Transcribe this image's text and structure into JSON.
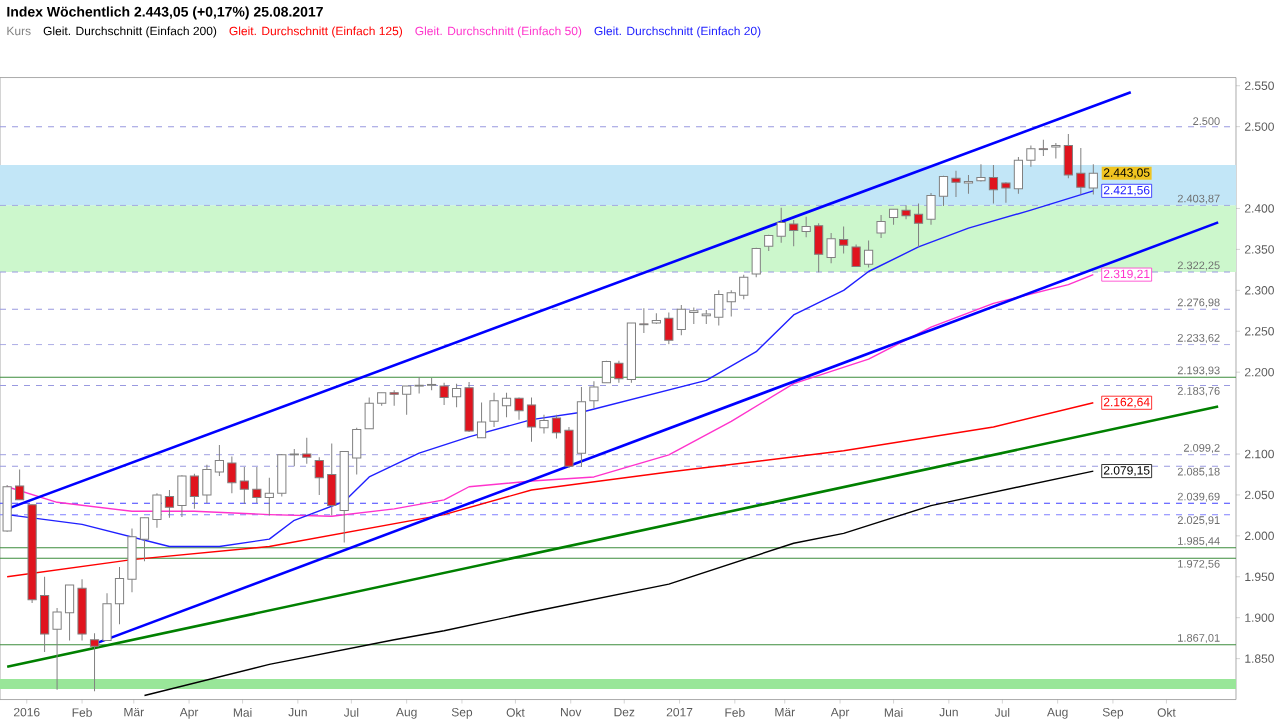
{
  "chart_data": {
    "type": "candlestick",
    "title": "Index Wöchentlich 2.443,05 (+0,17%) 25.08.2017",
    "legend": "top left",
    "xlim": [
      "2015-12-17",
      "2017-11-09"
    ],
    "ylim": [
      1800,
      2560
    ],
    "xticks": [
      {
        "value": "2016-01-01",
        "label": "2016"
      },
      {
        "value": "2016-02-01",
        "label": "Feb"
      },
      {
        "value": "2016-03-01",
        "label": "Mär"
      },
      {
        "value": "2016-04-01",
        "label": "Apr"
      },
      {
        "value": "2016-05-01",
        "label": "Mai"
      },
      {
        "value": "2016-06-01",
        "label": "Jun"
      },
      {
        "value": "2016-07-01",
        "label": "Jul"
      },
      {
        "value": "2016-08-01",
        "label": "Aug"
      },
      {
        "value": "2016-09-01",
        "label": "Sep"
      },
      {
        "value": "2016-10-01",
        "label": "Okt"
      },
      {
        "value": "2016-11-01",
        "label": "Nov"
      },
      {
        "value": "2016-12-01",
        "label": "Dez"
      },
      {
        "value": "2017-01-01",
        "label": "2017"
      },
      {
        "value": "2017-02-01",
        "label": "Feb"
      },
      {
        "value": "2017-03-01",
        "label": "Mär"
      },
      {
        "value": "2017-04-01",
        "label": "Apr"
      },
      {
        "value": "2017-05-01",
        "label": "Mai"
      },
      {
        "value": "2017-06-01",
        "label": "Jun"
      },
      {
        "value": "2017-07-01",
        "label": "Jul"
      },
      {
        "value": "2017-08-01",
        "label": "Aug"
      },
      {
        "value": "2017-09-01",
        "label": "Sep"
      },
      {
        "value": "2017-10-01",
        "label": "Okt"
      }
    ],
    "yticks": [
      {
        "value": 1850,
        "label": "1.850"
      },
      {
        "value": 1900,
        "label": "1.900"
      },
      {
        "value": 1950,
        "label": "1.950"
      },
      {
        "value": 2000,
        "label": "2.000"
      },
      {
        "value": 2050,
        "label": "2.050"
      },
      {
        "value": 2100,
        "label": "2.100"
      },
      {
        "value": 2200,
        "label": "2.200"
      },
      {
        "value": 2250,
        "label": "2.250"
      },
      {
        "value": 2300,
        "label": "2.300"
      },
      {
        "value": 2350,
        "label": "2.350"
      },
      {
        "value": 2400,
        "label": "2.400"
      },
      {
        "value": 2500,
        "label": "2.500"
      },
      {
        "value": 2550,
        "label": "2.550"
      }
    ],
    "bands": [
      {
        "axis": "y",
        "from": 2322.25,
        "to": 2403.87,
        "color": "#ccf7cc"
      },
      {
        "axis": "y",
        "from": 2403.87,
        "to": 2453,
        "color": "#c2e6f7"
      },
      {
        "axis": "y",
        "from": 1813,
        "to": 1825,
        "color": "#99e699"
      }
    ],
    "ref_lines": [
      {
        "axis": "y",
        "value": 2500,
        "label": "2.500",
        "color": "#9999e0",
        "line_style": "dashed"
      },
      {
        "axis": "y",
        "value": 2403.87,
        "label": "2.403,87",
        "color": "#9999e0",
        "line_style": "dashed"
      },
      {
        "axis": "y",
        "value": 2322.25,
        "label": "2.322,25",
        "color": "#9999e0",
        "line_style": "dashed"
      },
      {
        "axis": "y",
        "value": 2276.98,
        "label": "2.276,98",
        "color": "#9999e0",
        "line_style": "dashed"
      },
      {
        "axis": "y",
        "value": 2233.62,
        "label": "2.233,62",
        "color": "#9999e0",
        "line_style": "dashed"
      },
      {
        "axis": "y",
        "value": 2193.93,
        "label": "2.193,93",
        "color": "#3c8c3c",
        "line_style": "solid"
      },
      {
        "axis": "y",
        "value": 2183.76,
        "label": "2.183,76",
        "color": "#9999e0",
        "line_style": "dashed"
      },
      {
        "axis": "y",
        "value": 2099.2,
        "label": "2.099,2",
        "color": "#9999e0",
        "line_style": "dashed"
      },
      {
        "axis": "y",
        "value": 2085.18,
        "label": "2.085,18",
        "color": "#9999e0",
        "line_style": "dashed"
      },
      {
        "axis": "y",
        "value": 2039.69,
        "label": "2.039,69",
        "color": "#4040ff",
        "line_style": "dashed"
      },
      {
        "axis": "y",
        "value": 2025.91,
        "label": "2.025,91",
        "color": "#8080ff",
        "line_style": "dashed"
      },
      {
        "axis": "y",
        "value": 1985.44,
        "label": "1.985,44",
        "color": "#3c8c3c",
        "line_style": "solid"
      },
      {
        "axis": "y",
        "value": 1972.56,
        "label": "1.972,56",
        "color": "#3c8c3c",
        "line_style": "solid"
      },
      {
        "axis": "y",
        "value": 1867.01,
        "label": "1.867,01",
        "color": "#3c8c3c",
        "line_style": "solid"
      }
    ],
    "annotations": [
      {
        "text": "2.443,05",
        "x": "2017-08-21",
        "y": 2443.05
      }
    ],
    "series": [
      {
        "type": "candlestick",
        "name": "Kurs",
        "color": "#808080",
        "x": [
          "2015-12-21",
          "2015-12-28",
          "2016-01-04",
          "2016-01-11",
          "2016-01-18",
          "2016-01-25",
          "2016-02-01",
          "2016-02-08",
          "2016-02-15",
          "2016-02-22",
          "2016-02-29",
          "2016-03-07",
          "2016-03-14",
          "2016-03-21",
          "2016-03-28",
          "2016-04-04",
          "2016-04-11",
          "2016-04-18",
          "2016-04-25",
          "2016-05-02",
          "2016-05-09",
          "2016-05-16",
          "2016-05-23",
          "2016-05-30",
          "2016-06-06",
          "2016-06-13",
          "2016-06-20",
          "2016-06-27",
          "2016-07-04",
          "2016-07-11",
          "2016-07-18",
          "2016-07-25",
          "2016-08-01",
          "2016-08-08",
          "2016-08-15",
          "2016-08-22",
          "2016-08-29",
          "2016-09-05",
          "2016-09-12",
          "2016-09-19",
          "2016-09-26",
          "2016-10-03",
          "2016-10-10",
          "2016-10-17",
          "2016-10-24",
          "2016-10-31",
          "2016-11-07",
          "2016-11-14",
          "2016-11-21",
          "2016-11-28",
          "2016-12-05",
          "2016-12-12",
          "2016-12-19",
          "2016-12-26",
          "2017-01-02",
          "2017-01-09",
          "2017-01-16",
          "2017-01-23",
          "2017-01-30",
          "2017-02-06",
          "2017-02-13",
          "2017-02-20",
          "2017-02-27",
          "2017-03-06",
          "2017-03-13",
          "2017-03-20",
          "2017-03-27",
          "2017-04-03",
          "2017-04-10",
          "2017-04-17",
          "2017-04-24",
          "2017-05-01",
          "2017-05-08",
          "2017-05-15",
          "2017-05-22",
          "2017-05-29",
          "2017-06-05",
          "2017-06-12",
          "2017-06-19",
          "2017-06-26",
          "2017-07-03",
          "2017-07-10",
          "2017-07-17",
          "2017-07-24",
          "2017-07-31",
          "2017-08-07",
          "2017-08-14",
          "2017-08-21"
        ],
        "ohlc": [
          [
            2006,
            2062,
            2005,
            2060
          ],
          [
            2061,
            2081,
            2044,
            2044
          ],
          [
            2038,
            2038,
            1918,
            1922
          ],
          [
            1927,
            1950,
            1858,
            1880
          ],
          [
            1886,
            1912,
            1812,
            1907
          ],
          [
            1906,
            1940,
            1872,
            1940
          ],
          [
            1936,
            1947,
            1872,
            1880
          ],
          [
            1873,
            1881,
            1810,
            1865
          ],
          [
            1872,
            1930,
            1872,
            1917
          ],
          [
            1917,
            1962,
            1892,
            1948
          ],
          [
            1947,
            2009,
            1931,
            1999
          ],
          [
            1996,
            2022,
            1969,
            2022
          ],
          [
            2020,
            2052,
            2010,
            2050
          ],
          [
            2048,
            2056,
            2022,
            2035
          ],
          [
            2037,
            2074,
            2023,
            2073
          ],
          [
            2073,
            2076,
            2033,
            2048
          ],
          [
            2050,
            2087,
            2040,
            2081
          ],
          [
            2078,
            2111,
            2073,
            2092
          ],
          [
            2089,
            2097,
            2052,
            2065
          ],
          [
            2067,
            2084,
            2039,
            2057
          ],
          [
            2057,
            2084,
            2040,
            2047
          ],
          [
            2047,
            2071,
            2025,
            2052
          ],
          [
            2052,
            2100,
            2048,
            2099
          ],
          [
            2100,
            2106,
            2085,
            2099
          ],
          [
            2100,
            2120,
            2088,
            2096
          ],
          [
            2092,
            2096,
            2050,
            2071
          ],
          [
            2075,
            2113,
            2025,
            2037
          ],
          [
            2031,
            2103,
            1992,
            2103
          ],
          [
            2095,
            2132,
            2075,
            2130
          ],
          [
            2131,
            2169,
            2131,
            2162
          ],
          [
            2162,
            2175,
            2159,
            2175
          ],
          [
            2175,
            2178,
            2159,
            2173
          ],
          [
            2173,
            2183,
            2148,
            2183
          ],
          [
            2183,
            2194,
            2174,
            2184
          ],
          [
            2184,
            2193,
            2178,
            2185
          ],
          [
            2183,
            2187,
            2160,
            2169
          ],
          [
            2170,
            2186,
            2157,
            2180
          ],
          [
            2181,
            2188,
            2127,
            2128
          ],
          [
            2120,
            2163,
            2120,
            2139
          ],
          [
            2140,
            2175,
            2133,
            2165
          ],
          [
            2159,
            2175,
            2145,
            2168
          ],
          [
            2168,
            2169,
            2142,
            2153
          ],
          [
            2160,
            2169,
            2115,
            2133
          ],
          [
            2132,
            2148,
            2125,
            2141
          ],
          [
            2144,
            2148,
            2119,
            2126
          ],
          [
            2129,
            2133,
            2083,
            2085
          ],
          [
            2101,
            2182,
            2084,
            2164
          ],
          [
            2165,
            2189,
            2156,
            2182
          ],
          [
            2187,
            2214,
            2187,
            2213
          ],
          [
            2211,
            2214,
            2187,
            2192
          ],
          [
            2191,
            2260,
            2187,
            2260
          ],
          [
            2259,
            2278,
            2248,
            2258
          ],
          [
            2260,
            2272,
            2259,
            2263
          ],
          [
            2266,
            2273,
            2234,
            2239
          ],
          [
            2252,
            2282,
            2245,
            2277
          ],
          [
            2273,
            2279,
            2259,
            2275
          ],
          [
            2269,
            2276,
            2259,
            2271
          ],
          [
            2267,
            2300,
            2257,
            2295
          ],
          [
            2286,
            2300,
            2268,
            2297
          ],
          [
            2294,
            2319,
            2289,
            2316
          ],
          [
            2320,
            2352,
            2316,
            2351
          ],
          [
            2354,
            2368,
            2348,
            2367
          ],
          [
            2366,
            2401,
            2358,
            2383
          ],
          [
            2381,
            2386,
            2354,
            2373
          ],
          [
            2372,
            2390,
            2365,
            2378
          ],
          [
            2379,
            2382,
            2322,
            2344
          ],
          [
            2340,
            2370,
            2333,
            2363
          ],
          [
            2362,
            2378,
            2345,
            2355
          ],
          [
            2353,
            2356,
            2329,
            2329
          ],
          [
            2332,
            2361,
            2328,
            2349
          ],
          [
            2370,
            2392,
            2364,
            2384
          ],
          [
            2389,
            2399,
            2380,
            2399
          ],
          [
            2398,
            2404,
            2387,
            2391
          ],
          [
            2393,
            2406,
            2353,
            2382
          ],
          [
            2387,
            2419,
            2380,
            2416
          ],
          [
            2415,
            2440,
            2403,
            2439
          ],
          [
            2437,
            2446,
            2414,
            2432
          ],
          [
            2431,
            2441,
            2418,
            2433
          ],
          [
            2434,
            2454,
            2433,
            2438
          ],
          [
            2438,
            2453,
            2406,
            2423
          ],
          [
            2431,
            2432,
            2407,
            2425
          ],
          [
            2424,
            2463,
            2418,
            2459
          ],
          [
            2459,
            2477,
            2451,
            2473
          ],
          [
            2473,
            2484,
            2464,
            2472
          ],
          [
            2475,
            2480,
            2461,
            2477
          ],
          [
            2477,
            2491,
            2437,
            2441
          ],
          [
            2443,
            2474,
            2417,
            2426
          ],
          [
            2425,
            2454,
            2417,
            2443.05
          ]
        ],
        "colors": [
          "#ffffff",
          "#e0141e",
          "#e0141e",
          "#e0141e",
          "#ffffff",
          "#ffffff",
          "#e0141e",
          "#e0141e",
          "#ffffff",
          "#ffffff",
          "#ffffff",
          "#ffffff",
          "#ffffff",
          "#e0141e",
          "#ffffff",
          "#e0141e",
          "#ffffff",
          "#ffffff",
          "#e0141e",
          "#e0141e",
          "#e0141e",
          "#ffffff",
          "#ffffff",
          "#e0141e",
          "#e0141e",
          "#e0141e",
          "#e0141e",
          "#ffffff",
          "#ffffff",
          "#ffffff",
          "#ffffff",
          "#e0141e",
          "#ffffff",
          "#ffffff",
          "#ffffff",
          "#e0141e",
          "#ffffff",
          "#e0141e",
          "#ffffff",
          "#ffffff",
          "#ffffff",
          "#e0141e",
          "#e0141e",
          "#ffffff",
          "#e0141e",
          "#e0141e",
          "#ffffff",
          "#ffffff",
          "#ffffff",
          "#e0141e",
          "#ffffff",
          "#e0141e",
          "#ffffff",
          "#e0141e",
          "#ffffff",
          "#ffffff",
          "#ffffff",
          "#ffffff",
          "#ffffff",
          "#ffffff",
          "#ffffff",
          "#ffffff",
          "#ffffff",
          "#e0141e",
          "#ffffff",
          "#e0141e",
          "#ffffff",
          "#e0141e",
          "#e0141e",
          "#ffffff",
          "#ffffff",
          "#ffffff",
          "#e0141e",
          "#e0141e",
          "#ffffff",
          "#ffffff",
          "#e0141e",
          "#ffffff",
          "#ffffff",
          "#e0141e",
          "#e0141e",
          "#ffffff",
          "#ffffff",
          "#e0141e",
          "#ffffff",
          "#e0141e",
          "#e0141e",
          "#ffffff"
        ]
      },
      {
        "type": "line",
        "name": "Gleit. Durchschnitt (Einfach 200)",
        "color": "#000000",
        "x": [
          "2016-03-07",
          "2016-05-16",
          "2016-07-25",
          "2016-08-22",
          "2016-10-10",
          "2016-12-26",
          "2017-03-06",
          "2017-04-03",
          "2017-05-22",
          "2017-08-21"
        ],
        "values": [
          1805,
          1843,
          1873,
          1884,
          1907,
          1941,
          1991,
          2003,
          2037,
          2079.15
        ],
        "value_labels": [
          null,
          null,
          null,
          null,
          null,
          null,
          null,
          null,
          null,
          "2.079,15"
        ]
      },
      {
        "type": "line",
        "name": "Gleit. Durchschnitt (Einfach 125)",
        "color": "#ff0000",
        "x": [
          "2015-12-21",
          "2016-02-29",
          "2016-05-16",
          "2016-08-22",
          "2016-10-10",
          "2016-12-26",
          "2017-04-03",
          "2017-06-26",
          "2017-08-21"
        ],
        "values": [
          1950,
          1971,
          1987,
          2026,
          2056,
          2078,
          2104,
          2133,
          2162.64
        ],
        "value_labels": [
          null,
          null,
          null,
          null,
          null,
          null,
          null,
          null,
          "2.162,64"
        ]
      },
      {
        "type": "line",
        "name": "Gleit. Durchschnitt (Einfach 50)",
        "color": "#ff33cc",
        "x": [
          "2015-12-21",
          "2016-01-18",
          "2016-02-29",
          "2016-04-04",
          "2016-05-16",
          "2016-06-20",
          "2016-07-25",
          "2016-08-22",
          "2016-09-05",
          "2016-10-10",
          "2016-11-14",
          "2016-12-26",
          "2017-01-30",
          "2017-03-06",
          "2017-04-17",
          "2017-05-22",
          "2017-06-26",
          "2017-08-07",
          "2017-08-21"
        ],
        "values": [
          2060,
          2041,
          2030,
          2030,
          2026,
          2024,
          2033,
          2044,
          2060,
          2067,
          2072,
          2099,
          2140,
          2186,
          2216,
          2255,
          2284,
          2307,
          2319.21
        ],
        "value_labels": [
          null,
          null,
          null,
          null,
          null,
          null,
          null,
          null,
          null,
          null,
          null,
          null,
          null,
          null,
          null,
          null,
          null,
          null,
          "2.319,21"
        ]
      },
      {
        "type": "line",
        "name": "Gleit. Durchschnitt (Einfach 20)",
        "color": "#2020ff",
        "x": [
          "2015-12-21",
          "2016-02-01",
          "2016-03-21",
          "2016-04-18",
          "2016-05-16",
          "2016-05-30",
          "2016-06-27",
          "2016-07-11",
          "2016-08-08",
          "2016-09-05",
          "2016-10-10",
          "2016-11-07",
          "2017-01-16",
          "2017-02-13",
          "2017-03-06",
          "2017-04-03",
          "2017-04-17",
          "2017-05-15",
          "2017-06-12",
          "2017-07-17",
          "2017-08-21"
        ],
        "values": [
          2026,
          2014,
          1987,
          1987,
          1996,
          2019,
          2042,
          2072,
          2101,
          2121,
          2142,
          2151,
          2190,
          2225,
          2270,
          2300,
          2323,
          2353,
          2376,
          2398,
          2421.56
        ],
        "value_labels": [
          null,
          null,
          null,
          null,
          null,
          null,
          null,
          null,
          null,
          null,
          null,
          null,
          null,
          null,
          null,
          null,
          null,
          null,
          null,
          null,
          "2.421,56"
        ]
      },
      {
        "type": "line",
        "color": "#0000ff",
        "x": [
          "2015-12-21",
          "2017-09-11"
        ],
        "values": [
          2033,
          2542
        ]
      },
      {
        "type": "line",
        "color": "#0000ff",
        "x": [
          "2016-02-08",
          "2017-10-30"
        ],
        "values": [
          1868,
          2383
        ]
      },
      {
        "type": "line",
        "color": "#008000",
        "x": [
          "2015-12-21",
          "2017-10-30"
        ],
        "values": [
          1840,
          2158
        ]
      }
    ]
  }
}
